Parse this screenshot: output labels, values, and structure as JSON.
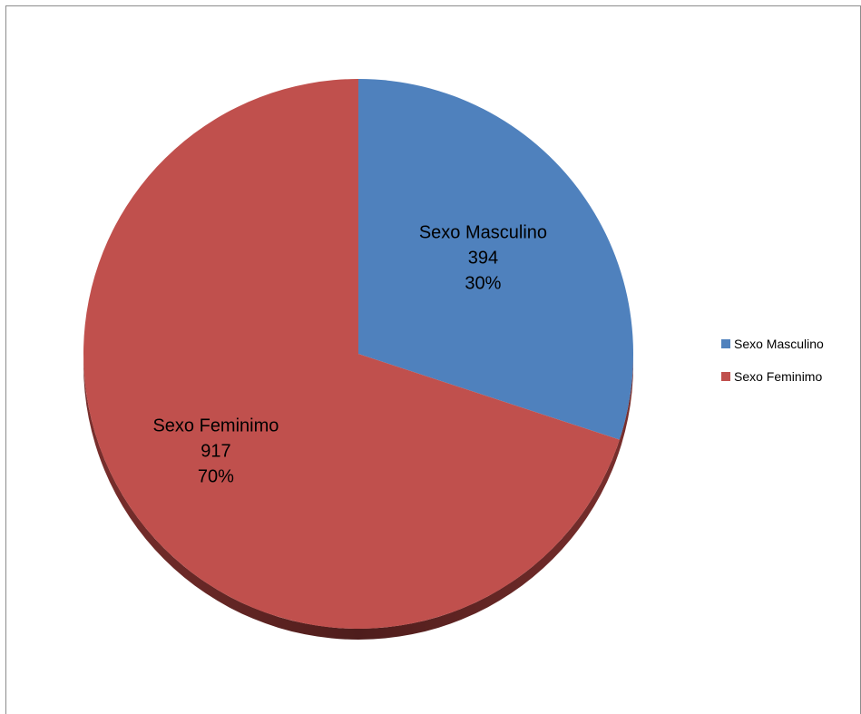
{
  "chart_data": {
    "type": "pie",
    "categories": [
      "Sexo Masculino",
      "Sexo Feminimo"
    ],
    "values": [
      394,
      917
    ],
    "percent_labels": [
      "30%",
      "70%"
    ],
    "colors": [
      "#4f81bd",
      "#c0504d"
    ],
    "legend": {
      "position": "right",
      "entries": [
        "Sexo Masculino",
        "Sexo Feminimo"
      ]
    }
  }
}
